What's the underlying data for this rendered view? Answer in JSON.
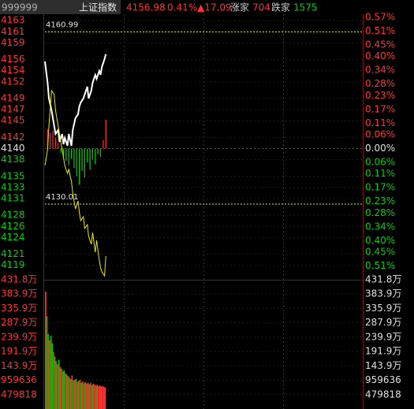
{
  "header": {
    "code": "999999",
    "name": "上证指数",
    "price": "4156.98",
    "change_pct": "0.41%",
    "change": "▲17.09",
    "up_label": "涨家",
    "up_count": "704",
    "down_label": "跌家",
    "down_count": "1575"
  },
  "chart_data": [
    {
      "type": "line",
      "xlim": [
        0,
        240
      ],
      "ylim": [
        4116.4,
        4163.6
      ],
      "yticks": [
        4163,
        4161,
        4159,
        4156,
        4154,
        4152,
        4149,
        4147,
        4145,
        4142,
        4140,
        4138,
        4135,
        4133,
        4131,
        4128,
        4126,
        4124,
        4121,
        4119
      ],
      "y2lim": [
        -0.57,
        0.57
      ],
      "y2ticks": [
        {
          "value": 0.57,
          "label": "0.57%"
        },
        {
          "value": 0.51,
          "label": "0.51%"
        },
        {
          "value": 0.45,
          "label": "0.45%"
        },
        {
          "value": 0.4,
          "label": "0.40%"
        },
        {
          "value": 0.34,
          "label": "0.34%"
        },
        {
          "value": 0.28,
          "label": "0.28%"
        },
        {
          "value": 0.23,
          "label": "0.23%"
        },
        {
          "value": 0.17,
          "label": "0.17%"
        },
        {
          "value": 0.11,
          "label": "0.11%"
        },
        {
          "value": 0.06,
          "label": "0.06%"
        },
        {
          "value": 0,
          "label": "0.00%"
        },
        {
          "value": -0.06,
          "label": "0.06%"
        },
        {
          "value": -0.11,
          "label": "0.11%"
        },
        {
          "value": -0.17,
          "label": "0.17%"
        },
        {
          "value": -0.23,
          "label": "0.23%"
        },
        {
          "value": -0.28,
          "label": "0.28%"
        },
        {
          "value": -0.34,
          "label": "0.34%"
        },
        {
          "value": -0.4,
          "label": "0.40%"
        },
        {
          "value": -0.45,
          "label": "0.45%"
        },
        {
          "value": -0.51,
          "label": "0.51%"
        }
      ],
      "hlines": [
        4160.99,
        4130.01
      ],
      "grid": true,
      "up_color": "#ff3232",
      "down_color": "#00d000",
      "series": [
        {
          "color": "#ffffff",
          "x": [
            0,
            2,
            3,
            5,
            7,
            8,
            10,
            11,
            13,
            14,
            15,
            17,
            18,
            20,
            21,
            23,
            25,
            26,
            27,
            29,
            30,
            32,
            33,
            35,
            36,
            38,
            39,
            41,
            42,
            43,
            45,
            46
          ],
          "values": [
            4155.66,
            4151.84,
            4149.0,
            4146.87,
            4144.04,
            4142.62,
            4143.33,
            4141.2,
            4142.62,
            4140.78,
            4141.91,
            4140.5,
            4142.62,
            4140.5,
            4143.33,
            4145.46,
            4146.17,
            4147.58,
            4148.29,
            4149.0,
            4149.71,
            4151.13,
            4149.0,
            4150.42,
            4151.84,
            4153.25,
            4152.54,
            4153.96,
            4153.25,
            4154.67,
            4156.09,
            4156.98
          ]
        },
        {
          "color": "#e8e800",
          "x": [
            0,
            2,
            3,
            5,
            7,
            8,
            10,
            11,
            13,
            14,
            15,
            17,
            18,
            20,
            21,
            23,
            25,
            26,
            27,
            29,
            30,
            32,
            33,
            35,
            36,
            38,
            39,
            41,
            42,
            43,
            45,
            46
          ],
          "values": [
            4136.95,
            4139.79,
            4144.04,
            4150.42,
            4149.71,
            4146.87,
            4144.04,
            4142.62,
            4139.79,
            4138.37,
            4136.95,
            4135.53,
            4136.24,
            4134.12,
            4131.99,
            4129.15,
            4130.57,
            4128.45,
            4127.03,
            4127.74,
            4125.61,
            4126.32,
            4124.19,
            4122.78,
            4124.9,
            4121.36,
            4123.49,
            4119.94,
            4118.53,
            4117.82,
            4117.11,
            4120.65
          ]
        }
      ],
      "ratio_bars": {
        "x": [
          2,
          4,
          6,
          8,
          10,
          12,
          14,
          16,
          18,
          20,
          22,
          24,
          26,
          28,
          30,
          32,
          34,
          36,
          38,
          40,
          42,
          44,
          46
        ],
        "values": [
          4143.5,
          4142.8,
          4143.2,
          4142.0,
          4141.0,
          4139.2,
          4138.6,
          4137.8,
          4137.0,
          4138.2,
          4136.5,
          4135.0,
          4133.5,
          4136.0,
          4134.8,
          4137.5,
          4136.2,
          4138.0,
          4137.2,
          4139.0,
          4138.5,
          4141.5,
          4145.2
        ]
      }
    },
    {
      "type": "bar",
      "xlim": [
        0,
        240
      ],
      "ylim": [
        0,
        4318362
      ],
      "yticks": [
        {
          "value": 4318362,
          "label": "431.8万"
        },
        {
          "value": 3838544,
          "label": "383.9万"
        },
        {
          "value": 3358726,
          "label": "335.9万"
        },
        {
          "value": 2878908,
          "label": "287.9万"
        },
        {
          "value": 2399090,
          "label": "239.9万"
        },
        {
          "value": 1919272,
          "label": "191.9万"
        },
        {
          "value": 1439454,
          "label": "143.9万"
        },
        959636,
        479818
      ],
      "x": [
        0,
        1,
        2,
        3,
        4,
        5,
        6,
        7,
        8,
        9,
        10,
        11,
        12,
        13,
        14,
        15,
        16,
        17,
        18,
        19,
        20,
        21,
        22,
        23,
        24,
        25,
        26,
        27,
        28,
        29,
        30,
        31,
        32,
        33,
        34,
        35,
        36,
        37,
        38,
        39,
        40,
        41,
        42,
        43,
        44,
        45
      ],
      "values": [
        3920000,
        3100000,
        2500000,
        2300000,
        2450000,
        2200000,
        1900000,
        1750000,
        1600000,
        1500000,
        1650000,
        1400000,
        1350000,
        1250000,
        1300000,
        1200000,
        1150000,
        1100000,
        1050000,
        1000000,
        1120000,
        950000,
        980000,
        1010000,
        900000,
        940000,
        970000,
        880000,
        920000,
        860000,
        900000,
        850000,
        880000,
        830000,
        870000,
        800000,
        840000,
        820000,
        780000,
        810000,
        760000,
        790000,
        750000,
        770000,
        740000,
        720000
      ],
      "colors": [
        "#ff3232",
        "#00c000",
        "#00c000",
        "#ff3232",
        "#00c000",
        "#00c000",
        "#ff3232",
        "#00c000",
        "#00c000",
        "#ff3232",
        "#00c000",
        "#ff3232",
        "#00c000",
        "#ff3232",
        "#00c000",
        "#00c000",
        "#ff3232",
        "#00c000",
        "#ff3232",
        "#00c000",
        "#ff3232",
        "#00c000",
        "#ff3232",
        "#00c000",
        "#ff3232",
        "#00c000",
        "#ff3232",
        "#00c000",
        "#ff3232",
        "#00c000",
        "#ff3232",
        "#ff3232",
        "#00c000",
        "#ff3232",
        "#ff3232",
        "#00c000",
        "#ff3232",
        "#ff3232",
        "#00c000",
        "#ff3232",
        "#ff3232",
        "#ff3232",
        "#ff3232",
        "#ff3232",
        "#ff3232",
        "#ff3232"
      ]
    }
  ]
}
